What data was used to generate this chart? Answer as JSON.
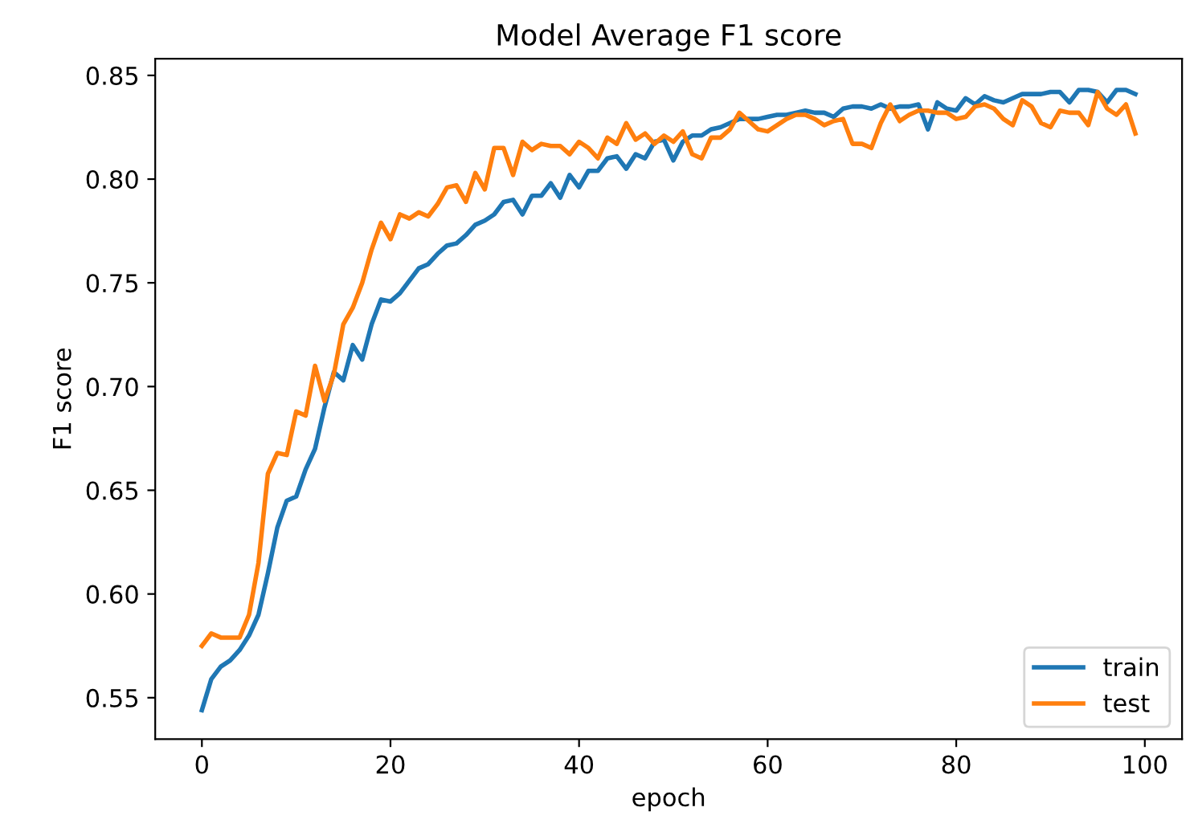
{
  "chart_data": {
    "type": "line",
    "title": "Model Average F1 score",
    "xlabel": "epoch",
    "ylabel": "F1 score",
    "x": [
      0,
      1,
      2,
      3,
      4,
      5,
      6,
      7,
      8,
      9,
      10,
      11,
      12,
      13,
      14,
      15,
      16,
      17,
      18,
      19,
      20,
      21,
      22,
      23,
      24,
      25,
      26,
      27,
      28,
      29,
      30,
      31,
      32,
      33,
      34,
      35,
      36,
      37,
      38,
      39,
      40,
      41,
      42,
      43,
      44,
      45,
      46,
      47,
      48,
      49,
      50,
      51,
      52,
      53,
      54,
      55,
      56,
      57,
      58,
      59,
      60,
      61,
      62,
      63,
      64,
      65,
      66,
      67,
      68,
      69,
      70,
      71,
      72,
      73,
      74,
      75,
      76,
      77,
      78,
      79,
      80,
      81,
      82,
      83,
      84,
      85,
      86,
      87,
      88,
      89,
      90,
      91,
      92,
      93,
      94,
      95,
      96,
      97,
      98,
      99
    ],
    "series": [
      {
        "name": "train",
        "color": "#1f77b4",
        "values": [
          0.544,
          0.559,
          0.565,
          0.568,
          0.573,
          0.58,
          0.59,
          0.61,
          0.632,
          0.645,
          0.647,
          0.66,
          0.67,
          0.69,
          0.707,
          0.703,
          0.72,
          0.713,
          0.73,
          0.742,
          0.741,
          0.745,
          0.751,
          0.757,
          0.759,
          0.764,
          0.768,
          0.769,
          0.773,
          0.778,
          0.78,
          0.783,
          0.789,
          0.79,
          0.783,
          0.792,
          0.792,
          0.798,
          0.791,
          0.802,
          0.796,
          0.804,
          0.804,
          0.81,
          0.811,
          0.805,
          0.812,
          0.81,
          0.818,
          0.819,
          0.809,
          0.818,
          0.821,
          0.821,
          0.824,
          0.825,
          0.827,
          0.829,
          0.829,
          0.829,
          0.83,
          0.831,
          0.831,
          0.832,
          0.833,
          0.832,
          0.832,
          0.83,
          0.834,
          0.835,
          0.835,
          0.834,
          0.836,
          0.834,
          0.835,
          0.835,
          0.836,
          0.824,
          0.837,
          0.834,
          0.833,
          0.839,
          0.836,
          0.84,
          0.838,
          0.837,
          0.839,
          0.841,
          0.841,
          0.841,
          0.842,
          0.842,
          0.837,
          0.843,
          0.843,
          0.842,
          0.837,
          0.843,
          0.843,
          0.841
        ]
      },
      {
        "name": "test",
        "color": "#ff7f0e",
        "values": [
          0.575,
          0.581,
          0.579,
          0.579,
          0.579,
          0.59,
          0.615,
          0.658,
          0.668,
          0.667,
          0.688,
          0.686,
          0.71,
          0.693,
          0.706,
          0.73,
          0.738,
          0.75,
          0.766,
          0.779,
          0.771,
          0.783,
          0.781,
          0.784,
          0.782,
          0.788,
          0.796,
          0.797,
          0.789,
          0.803,
          0.795,
          0.815,
          0.815,
          0.802,
          0.818,
          0.814,
          0.817,
          0.816,
          0.816,
          0.812,
          0.818,
          0.815,
          0.81,
          0.82,
          0.817,
          0.827,
          0.819,
          0.822,
          0.817,
          0.821,
          0.818,
          0.823,
          0.812,
          0.81,
          0.82,
          0.82,
          0.824,
          0.832,
          0.828,
          0.824,
          0.823,
          0.826,
          0.829,
          0.831,
          0.831,
          0.829,
          0.826,
          0.828,
          0.829,
          0.817,
          0.817,
          0.815,
          0.827,
          0.836,
          0.828,
          0.831,
          0.833,
          0.833,
          0.832,
          0.832,
          0.829,
          0.83,
          0.835,
          0.836,
          0.834,
          0.829,
          0.826,
          0.838,
          0.835,
          0.827,
          0.825,
          0.833,
          0.832,
          0.832,
          0.826,
          0.842,
          0.834,
          0.831,
          0.836,
          0.822
        ]
      }
    ],
    "xlim": [
      -4.95,
      103.95
    ],
    "ylim": [
      0.53,
      0.858
    ],
    "xticks": [
      0,
      20,
      40,
      60,
      80,
      100
    ],
    "yticks": [
      {
        "value": 0.55,
        "label": "0.55"
      },
      {
        "value": 0.6,
        "label": "0.60"
      },
      {
        "value": 0.65,
        "label": "0.65"
      },
      {
        "value": 0.7,
        "label": "0.70"
      },
      {
        "value": 0.75,
        "label": "0.75"
      },
      {
        "value": 0.8,
        "label": "0.80"
      },
      {
        "value": 0.85,
        "label": "0.85"
      }
    ],
    "legend": "bottom right",
    "grid": false
  }
}
